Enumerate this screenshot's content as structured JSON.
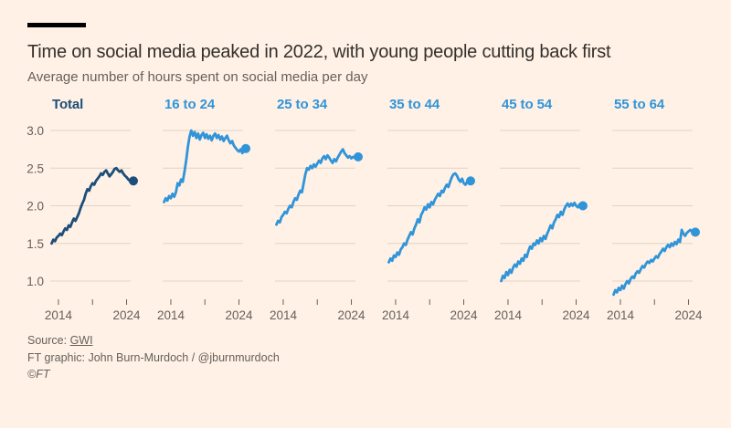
{
  "header": {
    "title": "Time on social media peaked in 2022, with young people cutting back first",
    "subtitle": "Average number of hours spent on social media per day"
  },
  "colors": {
    "background": "#FFF1E5",
    "text": "#33302E",
    "muted": "#66605C",
    "grid": "#E0D3C5",
    "dark_line": "#1D4E79",
    "light_line": "#3094D9",
    "top_bar": "#000000"
  },
  "chart_data": {
    "type": "line",
    "title": "Time on social media peaked in 2022, with young people cutting back first",
    "subtitle": "Average number of hours spent on social media per day",
    "layout": "small-multiples, 6 panels in a row, shared y axis labels on first panel only",
    "x_start": 2013,
    "x_step": 0.25,
    "xlim": [
      2012.8,
      2024.6
    ],
    "x_ticks": [
      2014,
      2019,
      2024
    ],
    "x_tick_labels": [
      "2014",
      "",
      "2024"
    ],
    "y_ticks": [
      3.0,
      2.5,
      2.0,
      1.5,
      1.0
    ],
    "y_tick_labels": [
      "3.0",
      "2.5",
      "2.0",
      "1.5",
      "1.0"
    ],
    "grid": true,
    "end_dot": true,
    "series": [
      {
        "label": "Total",
        "color": "#1D4E79",
        "values": [
          1.5,
          1.55,
          1.53,
          1.58,
          1.6,
          1.63,
          1.61,
          1.66,
          1.7,
          1.68,
          1.74,
          1.72,
          1.78,
          1.83,
          1.8,
          1.85,
          1.9,
          1.97,
          2.03,
          2.08,
          2.16,
          2.22,
          2.2,
          2.26,
          2.3,
          2.28,
          2.33,
          2.36,
          2.39,
          2.43,
          2.41,
          2.45,
          2.47,
          2.43,
          2.39,
          2.42,
          2.45,
          2.49,
          2.5,
          2.47,
          2.45,
          2.47,
          2.43,
          2.4,
          2.38,
          2.35,
          2.33,
          2.31,
          2.33
        ]
      },
      {
        "label": "16 to 24",
        "color": "#3094D9",
        "values": [
          2.05,
          2.1,
          2.07,
          2.13,
          2.1,
          2.16,
          2.12,
          2.18,
          2.3,
          2.27,
          2.35,
          2.32,
          2.45,
          2.6,
          2.78,
          2.92,
          3.0,
          2.93,
          2.98,
          2.9,
          2.96,
          2.88,
          2.94,
          2.97,
          2.9,
          2.95,
          2.89,
          2.93,
          2.87,
          2.93,
          2.96,
          2.9,
          2.94,
          2.88,
          2.92,
          2.86,
          2.9,
          2.93,
          2.87,
          2.83,
          2.86,
          2.8,
          2.77,
          2.74,
          2.72,
          2.75,
          2.7,
          2.74,
          2.76
        ]
      },
      {
        "label": "25 to 34",
        "color": "#3094D9",
        "values": [
          1.75,
          1.8,
          1.78,
          1.85,
          1.88,
          1.92,
          1.9,
          1.96,
          2.0,
          1.98,
          2.05,
          2.1,
          2.08,
          2.15,
          2.2,
          2.18,
          2.3,
          2.42,
          2.5,
          2.48,
          2.53,
          2.5,
          2.55,
          2.52,
          2.56,
          2.6,
          2.57,
          2.63,
          2.66,
          2.62,
          2.67,
          2.64,
          2.6,
          2.57,
          2.62,
          2.59,
          2.64,
          2.68,
          2.72,
          2.75,
          2.7,
          2.67,
          2.64,
          2.66,
          2.63,
          2.65,
          2.64,
          2.66,
          2.65
        ]
      },
      {
        "label": "35 to 44",
        "color": "#3094D9",
        "values": [
          1.25,
          1.3,
          1.27,
          1.34,
          1.32,
          1.38,
          1.35,
          1.42,
          1.45,
          1.5,
          1.48,
          1.55,
          1.6,
          1.65,
          1.62,
          1.7,
          1.75,
          1.82,
          1.78,
          1.88,
          1.92,
          1.98,
          1.95,
          2.02,
          1.98,
          2.05,
          2.02,
          2.08,
          2.12,
          2.16,
          2.13,
          2.2,
          2.18,
          2.24,
          2.28,
          2.25,
          2.32,
          2.38,
          2.42,
          2.43,
          2.4,
          2.35,
          2.32,
          2.36,
          2.3,
          2.28,
          2.32,
          2.34,
          2.33
        ]
      },
      {
        "label": "45 to 54",
        "color": "#3094D9",
        "values": [
          1.0,
          1.07,
          1.04,
          1.12,
          1.08,
          1.15,
          1.11,
          1.18,
          1.22,
          1.19,
          1.26,
          1.23,
          1.3,
          1.27,
          1.35,
          1.32,
          1.4,
          1.46,
          1.43,
          1.5,
          1.48,
          1.54,
          1.5,
          1.57,
          1.53,
          1.6,
          1.56,
          1.63,
          1.68,
          1.74,
          1.7,
          1.78,
          1.82,
          1.88,
          1.85,
          1.92,
          1.88,
          1.95,
          2.0,
          2.03,
          1.99,
          2.03,
          2.0,
          2.04,
          2.0,
          1.98,
          2.02,
          2.01,
          2.0
        ]
      },
      {
        "label": "55 to 64",
        "color": "#3094D9",
        "values": [
          0.82,
          0.88,
          0.85,
          0.91,
          0.88,
          0.94,
          0.9,
          0.96,
          1.0,
          0.97,
          1.03,
          1.06,
          1.04,
          1.1,
          1.13,
          1.11,
          1.16,
          1.2,
          1.18,
          1.23,
          1.26,
          1.24,
          1.28,
          1.26,
          1.3,
          1.33,
          1.31,
          1.36,
          1.39,
          1.43,
          1.4,
          1.45,
          1.48,
          1.45,
          1.5,
          1.47,
          1.52,
          1.49,
          1.55,
          1.52,
          1.68,
          1.63,
          1.6,
          1.64,
          1.66,
          1.68,
          1.66,
          1.64,
          1.65
        ]
      }
    ]
  },
  "footer": {
    "source_prefix": "Source: ",
    "source_link": "GWI",
    "credit": "FT graphic: John Burn-Murdoch / @jburnmurdoch",
    "copyright": "©FT"
  }
}
